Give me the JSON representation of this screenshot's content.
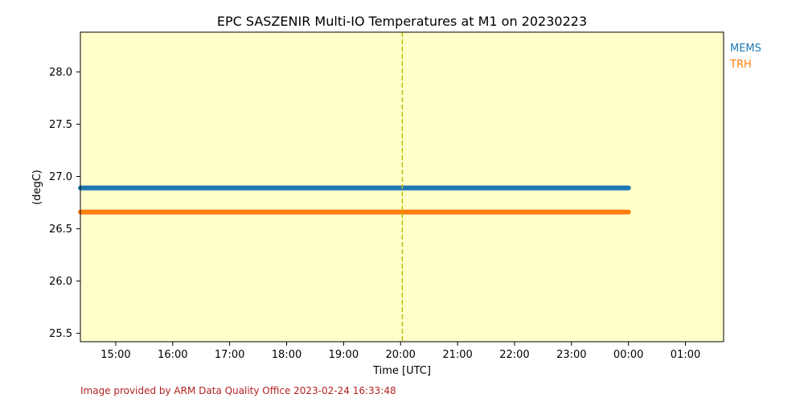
{
  "chart_data": {
    "type": "line",
    "title": "EPC SASZENIR Multi-IO Temperatures at M1 on 20230223",
    "xlabel": "Time [UTC]",
    "ylabel": "(degC)",
    "x_unit": "hours UTC",
    "xlim": [
      14.38,
      25.67
    ],
    "ylim": [
      25.42,
      28.38
    ],
    "x_ticks": [
      15,
      16,
      17,
      18,
      19,
      20,
      21,
      22,
      23,
      24,
      25
    ],
    "x_tick_labels": [
      "15:00",
      "16:00",
      "17:00",
      "18:00",
      "19:00",
      "20:00",
      "21:00",
      "22:00",
      "23:00",
      "00:00",
      "01:00"
    ],
    "y_ticks": [
      25.5,
      26.0,
      26.5,
      27.0,
      27.5,
      28.0
    ],
    "y_tick_labels": [
      "25.5",
      "26.0",
      "26.5",
      "27.0",
      "27.5",
      "28.0"
    ],
    "vline_x": 20.03,
    "background": "#ffffcc",
    "grid": false,
    "legend_position": "outside-top-right",
    "series": [
      {
        "name": "MEMS",
        "color": "#1f77b4",
        "x": [
          14.38,
          24.0
        ],
        "y": [
          26.89,
          26.89
        ]
      },
      {
        "name": "TRH",
        "color": "#ff7f0e",
        "x": [
          14.38,
          24.0
        ],
        "y": [
          26.66,
          26.66
        ]
      }
    ]
  },
  "footer": {
    "credit": "Image provided by ARM Data Quality Office 2023-02-24 16:33:48"
  }
}
